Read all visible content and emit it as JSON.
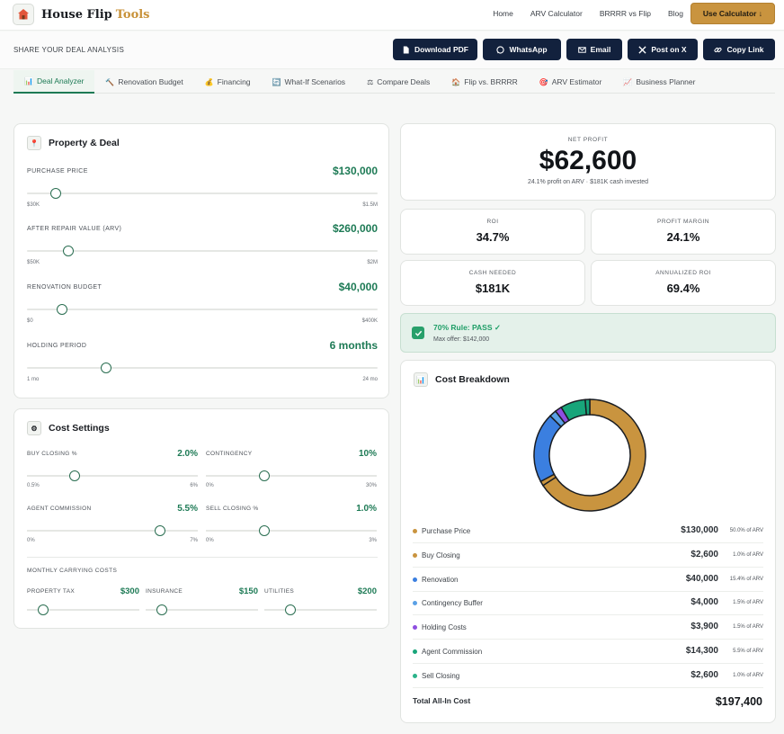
{
  "app": {
    "logo_main": "House Flip",
    "logo_accent": "Tools",
    "logo_icon": "house-icon"
  },
  "nav": {
    "links": [
      "Home",
      "ARV Calculator",
      "BRRRR vs Flip",
      "Blog"
    ],
    "cta": "Use Calculator ↓"
  },
  "share": {
    "label": "SHARE YOUR DEAL ANALYSIS",
    "buttons": [
      {
        "label": "Download PDF",
        "icon": "document-icon"
      },
      {
        "label": "WhatsApp",
        "icon": "whatsapp-icon"
      },
      {
        "label": "Email",
        "icon": "mail-icon"
      },
      {
        "label": "Post on X",
        "icon": "x-logo-icon"
      },
      {
        "label": "Copy Link",
        "icon": "link-icon"
      }
    ]
  },
  "tabs": [
    {
      "label": "Deal Analyzer",
      "icon": "📊",
      "active": true
    },
    {
      "label": "Renovation Budget",
      "icon": "🔨"
    },
    {
      "label": "Financing",
      "icon": "💰"
    },
    {
      "label": "What-If Scenarios",
      "icon": "🔄"
    },
    {
      "label": "Compare Deals",
      "icon": "⚖"
    },
    {
      "label": "Flip vs. BRRRR",
      "icon": "🏠"
    },
    {
      "label": "ARV Estimator",
      "icon": "🎯"
    },
    {
      "label": "Business Planner",
      "icon": "📈"
    }
  ],
  "property": {
    "title": "Property & Deal",
    "icon": "📍",
    "sliders": [
      {
        "label": "PURCHASE PRICE",
        "value": "$130,000",
        "min": "$30K",
        "max": "$1.5M",
        "fraction": 0.082
      },
      {
        "label": "AFTER REPAIR VALUE (ARV)",
        "value": "$260,000",
        "min": "$50K",
        "max": "$2M",
        "fraction": 0.118
      },
      {
        "label": "RENOVATION BUDGET",
        "value": "$40,000",
        "min": "$0",
        "max": "$400K",
        "fraction": 0.1
      },
      {
        "label": "HOLDING PERIOD",
        "value": "6 months",
        "min": "1 mo",
        "max": "24 mo",
        "fraction": 0.225
      }
    ]
  },
  "costs": {
    "title": "Cost Settings",
    "icon": "⚙",
    "sliders": [
      {
        "label": "BUY CLOSING %",
        "value": "2.0%",
        "min": "0.5%",
        "max": "6%",
        "fraction": 0.28
      },
      {
        "label": "CONTINGENCY",
        "value": "10%",
        "min": "0%",
        "max": "30%",
        "fraction": 0.34
      },
      {
        "label": "AGENT COMMISSION",
        "value": "5.5%",
        "min": "0%",
        "max": "7%",
        "fraction": 0.78
      },
      {
        "label": "SELL CLOSING %",
        "value": "1.0%",
        "min": "0%",
        "max": "3%",
        "fraction": 0.34
      }
    ],
    "carrying_label": "MONTHLY CARRYING COSTS",
    "carrying": [
      {
        "label": "PROPERTY TAX",
        "value": "$300",
        "fraction": 0.14
      },
      {
        "label": "INSURANCE",
        "value": "$150",
        "fraction": 0.14
      },
      {
        "label": "UTILITIES",
        "value": "$200",
        "fraction": 0.23
      }
    ]
  },
  "profit": {
    "label": "NET PROFIT",
    "value": "$62,600",
    "sub": "24.1% profit on ARV · $181K cash invested"
  },
  "stats": [
    {
      "label": "ROI",
      "value": "34.7%"
    },
    {
      "label": "PROFIT MARGIN",
      "value": "24.1%"
    },
    {
      "label": "CASH NEEDED",
      "value": "$181K"
    },
    {
      "label": "ANNUALIZED ROI",
      "value": "69.4%"
    }
  ],
  "rule": {
    "title": "70% Rule: PASS ✓",
    "sub": "Max offer: $142,000"
  },
  "breakdown": {
    "title": "Cost Breakdown",
    "icon": "📊",
    "items": [
      {
        "name": "Purchase Price",
        "amount": "$130,000",
        "pct": "50.0% of ARV",
        "color": "#c9943f",
        "dot": "#c9943f"
      },
      {
        "name": "Buy Closing",
        "amount": "$2,600",
        "pct": "1.0% of ARV",
        "color": "#c9943f",
        "dot": "#c9943f"
      },
      {
        "name": "Renovation",
        "amount": "$40,000",
        "pct": "15.4% of ARV",
        "color": "#3b7fe0",
        "dot": "#3b7fe0"
      },
      {
        "name": "Contingency Buffer",
        "amount": "$4,000",
        "pct": "1.5% of ARV",
        "color": "#5aa0e6",
        "dot": "#5aa0e6"
      },
      {
        "name": "Holding Costs",
        "amount": "$3,900",
        "pct": "1.5% of ARV",
        "color": "#8e4fe0",
        "dot": "#8e4fe0"
      },
      {
        "name": "Agent Commission",
        "amount": "$14,300",
        "pct": "5.5% of ARV",
        "color": "#18a57a",
        "dot": "#18a57a"
      },
      {
        "name": "Sell Closing",
        "amount": "$2,600",
        "pct": "1.0% of ARV",
        "color": "#2bb38a",
        "dot": "#2bb38a"
      }
    ],
    "total_label": "Total All-In Cost",
    "total_value": "$197,400"
  },
  "chart_data": {
    "type": "pie",
    "donut": true,
    "categories": [
      "Purchase Price",
      "Buy Closing",
      "Renovation",
      "Contingency Buffer",
      "Holding Costs",
      "Agent Commission",
      "Sell Closing"
    ],
    "values": [
      130000,
      2600,
      40000,
      4000,
      3900,
      14300,
      2600
    ],
    "colors": [
      "#c9943f",
      "#c9943f",
      "#3b7fe0",
      "#5aa0e6",
      "#8e4fe0",
      "#18a57a",
      "#18a57a"
    ]
  }
}
